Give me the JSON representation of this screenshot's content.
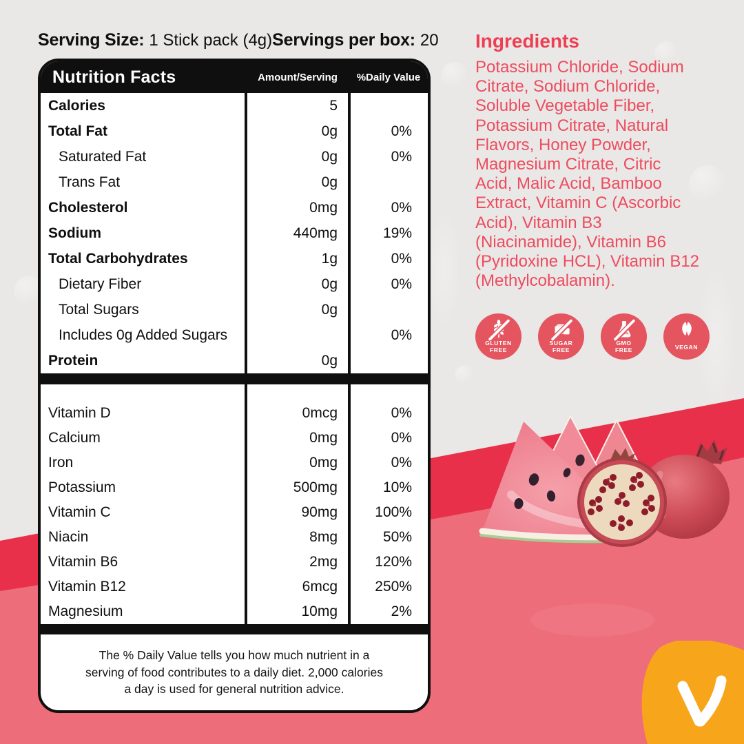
{
  "header": {
    "serving_size_label": "Serving Size:",
    "serving_size_value": "1 Stick pack (4g)",
    "servings_per_box_label": "Servings per box:",
    "servings_per_box_value": "20"
  },
  "nutrition": {
    "title": "Nutrition Facts",
    "col_amount": "Amount/Serving",
    "col_dv": "%Daily Value",
    "rows": [
      {
        "label": "Calories",
        "amount": "5",
        "dv": "",
        "bold": true
      },
      {
        "label": "Total Fat",
        "amount": "0g",
        "dv": "0%",
        "bold": true
      },
      {
        "label": "Saturated Fat",
        "amount": "0g",
        "dv": "0%",
        "indent": true
      },
      {
        "label": "Trans Fat",
        "amount": "0g",
        "dv": "",
        "indent": true
      },
      {
        "label": "Cholesterol",
        "amount": "0mg",
        "dv": "0%",
        "bold": true
      },
      {
        "label": "Sodium",
        "amount": "440mg",
        "dv": "19%",
        "bold": true
      },
      {
        "label": "Total Carbohydrates",
        "amount": "1g",
        "dv": "0%",
        "bold": true
      },
      {
        "label": "Dietary Fiber",
        "amount": "0g",
        "dv": "0%",
        "indent": true
      },
      {
        "label": "Total Sugars",
        "amount": "0g",
        "dv": "",
        "indent": true
      },
      {
        "label": "Includes 0g Added Sugars",
        "amount": "",
        "dv": "0%",
        "indent": true
      },
      {
        "label": "Protein",
        "amount": "0g",
        "dv": "",
        "bold": true
      }
    ],
    "vitamins": [
      {
        "label": "Vitamin D",
        "amount": "0mcg",
        "dv": "0%"
      },
      {
        "label": "Calcium",
        "amount": "0mg",
        "dv": "0%"
      },
      {
        "label": "Iron",
        "amount": "0mg",
        "dv": "0%"
      },
      {
        "label": "Potassium",
        "amount": "500mg",
        "dv": "10%"
      },
      {
        "label": "Vitamin C",
        "amount": "90mg",
        "dv": "100%"
      },
      {
        "label": "Niacin",
        "amount": "8mg",
        "dv": "50%"
      },
      {
        "label": "Vitamin B6",
        "amount": "2mg",
        "dv": "120%"
      },
      {
        "label": "Vitamin B12",
        "amount": "6mcg",
        "dv": "250%"
      },
      {
        "label": "Magnesium",
        "amount": "10mg",
        "dv": "2%"
      }
    ],
    "footnote": "The % Daily Value tells you how much nutrient in a\nserving of food contributes to a daily diet. 2,000 calories\na day is used for general nutrition advice."
  },
  "ingredients": {
    "title": "Ingredients",
    "text": "Potassium Chloride, Sodium\nCitrate, Sodium Chloride,\nSoluble Vegetable Fiber,\nPotassium Citrate, Natural\nFlavors, Honey Powder,\nMagnesium Citrate, Citric\nAcid, Malic Acid, Bamboo\nExtract, Vitamin C (Ascorbic\nAcid),  Vitamin B3\n(Niacinamide), Vitamin B6\n(Pyridoxine HCL), Vitamin B12\n(Methylcobalamin)."
  },
  "badges": [
    {
      "icon": "gluten-free-icon",
      "lines": [
        "GLUTEN",
        "FREE"
      ]
    },
    {
      "icon": "sugar-free-icon",
      "lines": [
        "SUGAR",
        "FREE"
      ]
    },
    {
      "icon": "gmo-free-icon",
      "lines": [
        "GMO",
        "FREE"
      ]
    },
    {
      "icon": "vegan-icon",
      "lines": [
        "VEGAN"
      ]
    }
  ],
  "colors": {
    "accent_red": "#ee4154",
    "swoosh_dark": "#e8304a",
    "swoosh_light": "#ed6d7a",
    "badge_red": "#e4555f",
    "logo_yellow": "#f7a61b",
    "panel_black": "#0f0f0f",
    "background": "#e9e8e6"
  }
}
